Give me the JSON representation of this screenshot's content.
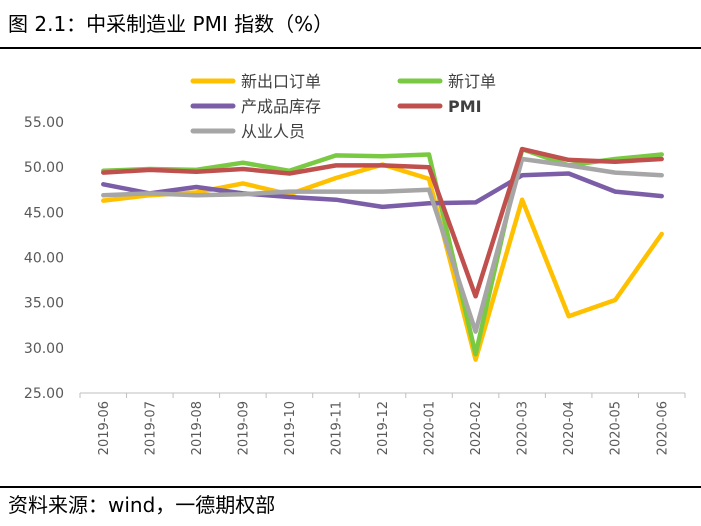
{
  "figure": {
    "title": "图 2.1：中采制造业 PMI 指数（%）",
    "source": "资料来源：wind，一德期权部"
  },
  "chart_data": {
    "type": "line",
    "title": "",
    "xlabel": "",
    "ylabel": "",
    "ylim": [
      25,
      55
    ],
    "yticks": [
      "25.00",
      "30.00",
      "35.00",
      "40.00",
      "45.00",
      "50.00",
      "55.00"
    ],
    "grid": false,
    "legend_position": "top",
    "categories": [
      "2019-06",
      "2019-07",
      "2019-08",
      "2019-09",
      "2019-10",
      "2019-11",
      "2019-12",
      "2020-01",
      "2020-02",
      "2020-03",
      "2020-04",
      "2020-05",
      "2020-06"
    ],
    "series": [
      {
        "name": "新出口订单",
        "color": "#FFC000",
        "values": [
          46.3,
          46.9,
          47.2,
          48.2,
          47.0,
          48.8,
          50.3,
          48.7,
          28.7,
          46.4,
          33.5,
          35.3,
          42.6
        ]
      },
      {
        "name": "新订单",
        "color": "#7AC943",
        "values": [
          49.6,
          49.8,
          49.7,
          50.5,
          49.6,
          51.3,
          51.2,
          51.4,
          29.3,
          52.0,
          50.2,
          50.9,
          51.4
        ]
      },
      {
        "name": "产成品库存",
        "color": "#7B5EA7",
        "values": [
          48.1,
          47.1,
          47.8,
          47.1,
          46.7,
          46.4,
          45.6,
          46.0,
          46.1,
          49.1,
          49.3,
          47.3,
          46.8
        ]
      },
      {
        "name": "PMI",
        "color": "#C0504D",
        "values": [
          49.4,
          49.7,
          49.5,
          49.8,
          49.3,
          50.2,
          50.2,
          50.0,
          35.7,
          52.0,
          50.8,
          50.6,
          50.9
        ]
      },
      {
        "name": "从业人员",
        "color": "#A6A6A6",
        "values": [
          46.9,
          47.1,
          46.9,
          47.0,
          47.3,
          47.3,
          47.3,
          47.5,
          31.8,
          50.9,
          50.2,
          49.4,
          49.1
        ]
      }
    ]
  }
}
